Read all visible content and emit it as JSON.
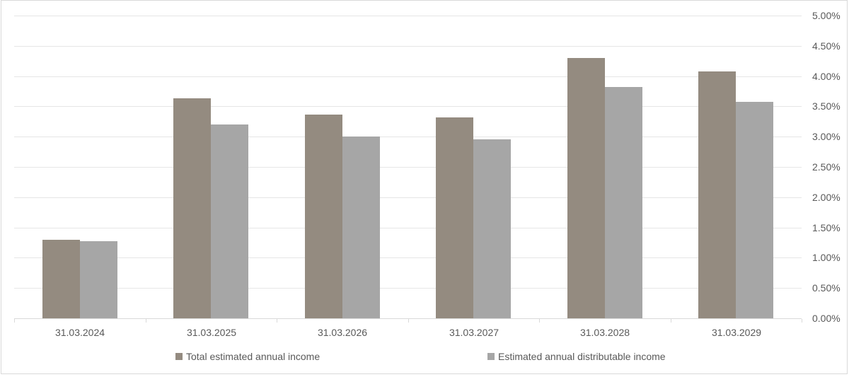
{
  "chart_data": {
    "type": "bar",
    "title": "",
    "xlabel": "",
    "ylabel": "",
    "categories": [
      "31.03.2024",
      "31.03.2025",
      "31.03.2026",
      "31.03.2027",
      "31.03.2028",
      "31.03.2029"
    ],
    "series": [
      {
        "name": "Total estimated annual income",
        "color": "#948b80",
        "values": [
          1.3,
          3.63,
          3.36,
          3.32,
          4.3,
          4.08
        ]
      },
      {
        "name": "Estimated annual distributable income",
        "color": "#a6a6a6",
        "values": [
          1.27,
          3.2,
          3.0,
          2.95,
          3.82,
          3.57
        ]
      }
    ],
    "ylim": [
      0,
      5
    ],
    "ytick_step": 0.5,
    "ytick_labels": [
      "0.00%",
      "0.50%",
      "1.00%",
      "1.50%",
      "2.00%",
      "2.50%",
      "3.00%",
      "3.50%",
      "4.00%",
      "4.50%",
      "5.00%"
    ],
    "grid": true,
    "legend_position": "bottom"
  },
  "colors": {
    "grid": "#e6e6e6",
    "axis": "#d9d9d9",
    "border": "#d9d9d9",
    "text": "#595959",
    "background": "#ffffff"
  }
}
